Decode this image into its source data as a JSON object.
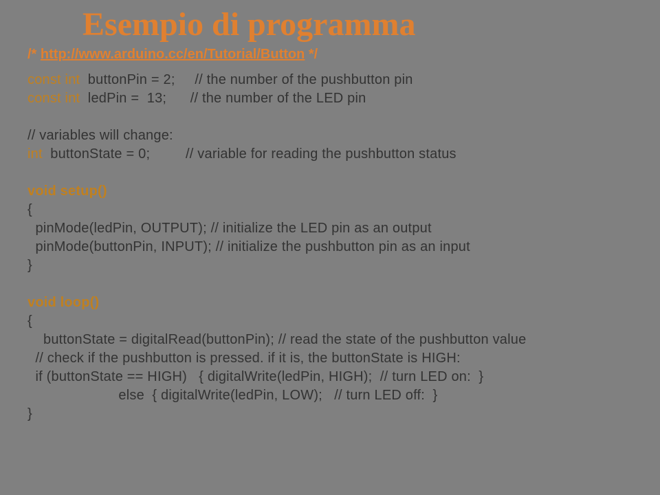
{
  "slide": {
    "background_color": "#808080",
    "title": {
      "text": "Esempio di programma",
      "color": "#e08030",
      "font_family": "serif",
      "font_size_pt": 36,
      "font_weight": "bold"
    },
    "url_line": {
      "prefix": "/* ",
      "url": "http://www.arduino.cc/en/Tutorial/Button",
      "suffix": "  */",
      "color_front": "#e08030",
      "color_shadow": "#7f7f7f",
      "font_size_pt": 15,
      "font_weight": "bold"
    },
    "code": {
      "keyword_color": "#c08020",
      "text_color": "#333333",
      "font_size_pt": 15,
      "lines": [
        {
          "t": "const int",
          "kw": true,
          "rest": "  buttonPin = 2;     // the number of the pushbutton pin"
        },
        {
          "t": "const int",
          "kw": true,
          "rest": "  ledPin =  13;      // the number of the LED pin"
        },
        {
          "t": "",
          "rest": ""
        },
        {
          "t": "",
          "rest": "// variables will change:"
        },
        {
          "t": "int",
          "kw": true,
          "rest": "  buttonState = 0;         // variable for reading the pushbutton status"
        },
        {
          "t": "",
          "rest": ""
        },
        {
          "fn": true,
          "t": "void setup()",
          "rest": ""
        },
        {
          "t": "",
          "rest": "{"
        },
        {
          "t": "",
          "rest": "  pinMode(ledPin, OUTPUT); // initialize the LED pin as an output"
        },
        {
          "t": "",
          "rest": "  pinMode(buttonPin, INPUT); // initialize the pushbutton pin as an input"
        },
        {
          "t": "",
          "rest": "}"
        },
        {
          "t": "",
          "rest": ""
        },
        {
          "fn": true,
          "t": "void loop()",
          "rest": ""
        },
        {
          "t": "",
          "rest": "{"
        },
        {
          "t": "",
          "rest": "    buttonState = digitalRead(buttonPin); // read the state of the pushbutton value"
        },
        {
          "t": "",
          "rest": "  // check if the pushbutton is pressed. if it is, the buttonState is HIGH:"
        },
        {
          "t": "",
          "rest": "  if (buttonState == HIGH)   { digitalWrite(ledPin, HIGH);  // turn LED on:  }"
        },
        {
          "t": "",
          "rest": "                       else  { digitalWrite(ledPin, LOW);   // turn LED off:  }"
        },
        {
          "t": "",
          "rest": "}"
        }
      ]
    }
  }
}
